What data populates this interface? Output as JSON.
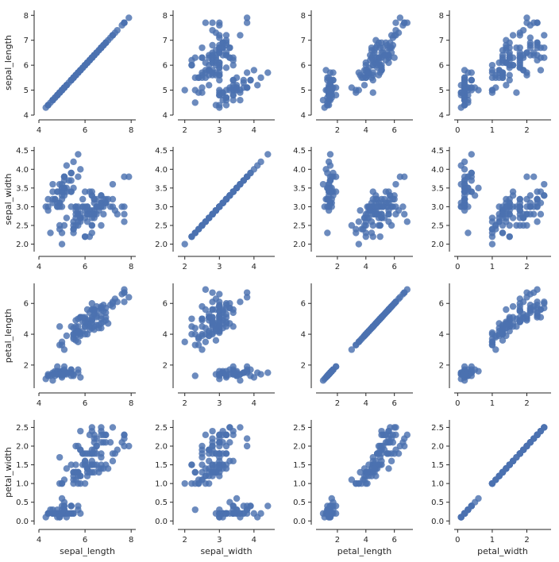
{
  "chart_data": {
    "type": "scatter",
    "title": "",
    "variables": [
      "sepal_length",
      "sepal_width",
      "petal_length",
      "petal_width"
    ],
    "point_color": "#4c72b0",
    "axis_color": "#262626",
    "axes": {
      "sepal_length": {
        "range": [
          4,
          8.2
        ],
        "ticks": [
          4,
          5,
          6,
          7,
          8
        ],
        "x_ticks": [
          4,
          6,
          8
        ]
      },
      "sepal_width": {
        "range": [
          1.8,
          4.6
        ],
        "ticks": [
          2.0,
          2.5,
          3.0,
          3.5,
          4.0,
          4.5
        ],
        "x_ticks": [
          2,
          3,
          4
        ]
      },
      "petal_length": {
        "range": [
          0.5,
          7.3
        ],
        "ticks": [
          2,
          4,
          6
        ],
        "x_ticks": [
          2,
          4,
          6
        ]
      },
      "petal_width": {
        "range": [
          -0.1,
          2.7
        ],
        "ticks": [
          0.0,
          0.5,
          1.0,
          1.5,
          2.0,
          2.5
        ],
        "x_ticks": [
          0,
          1,
          2
        ]
      }
    },
    "data": {
      "sepal_length": [
        5.1,
        4.9,
        4.7,
        4.6,
        5.0,
        5.4,
        4.6,
        5.0,
        4.4,
        4.9,
        5.4,
        4.8,
        4.8,
        4.3,
        5.8,
        5.7,
        5.4,
        5.1,
        5.7,
        5.1,
        5.4,
        5.1,
        4.6,
        5.1,
        4.8,
        5.0,
        5.0,
        5.2,
        5.2,
        4.7,
        4.8,
        5.4,
        5.2,
        5.5,
        4.9,
        5.0,
        5.5,
        4.9,
        4.4,
        5.1,
        5.0,
        4.5,
        4.4,
        5.0,
        5.1,
        4.8,
        5.1,
        4.6,
        5.3,
        5.0,
        7.0,
        6.4,
        6.9,
        5.5,
        6.5,
        5.7,
        6.3,
        4.9,
        6.6,
        5.2,
        5.0,
        5.9,
        6.0,
        6.1,
        5.6,
        6.7,
        5.6,
        5.8,
        6.2,
        5.6,
        5.9,
        6.1,
        6.3,
        6.1,
        6.4,
        6.6,
        6.8,
        6.7,
        6.0,
        5.7,
        5.5,
        5.5,
        5.8,
        6.0,
        5.4,
        6.0,
        6.7,
        6.3,
        5.6,
        5.5,
        5.5,
        6.1,
        5.8,
        5.0,
        5.6,
        5.7,
        5.7,
        6.2,
        5.1,
        5.7,
        6.3,
        5.8,
        7.1,
        6.3,
        6.5,
        7.6,
        4.9,
        7.3,
        6.7,
        7.2,
        6.5,
        6.4,
        6.8,
        5.7,
        5.8,
        6.4,
        6.5,
        7.7,
        7.7,
        6.0,
        6.9,
        5.6,
        7.7,
        6.3,
        6.7,
        7.2,
        6.2,
        6.1,
        6.4,
        7.2,
        7.4,
        7.9,
        6.4,
        6.3,
        6.1,
        7.7,
        6.3,
        6.4,
        6.0,
        6.9,
        6.7,
        6.9,
        5.8,
        6.8,
        6.7,
        6.7,
        6.3,
        6.5,
        6.2,
        5.9
      ],
      "sepal_width": [
        3.5,
        3.0,
        3.2,
        3.1,
        3.6,
        3.9,
        3.4,
        3.4,
        2.9,
        3.1,
        3.7,
        3.4,
        3.0,
        3.0,
        4.0,
        4.4,
        3.9,
        3.5,
        3.8,
        3.8,
        3.4,
        3.7,
        3.6,
        3.3,
        3.4,
        3.0,
        3.4,
        3.5,
        3.4,
        3.2,
        3.1,
        3.4,
        4.1,
        4.2,
        3.1,
        3.2,
        3.5,
        3.6,
        3.0,
        3.4,
        3.5,
        2.3,
        3.2,
        3.5,
        3.8,
        3.0,
        3.8,
        3.2,
        3.7,
        3.3,
        3.2,
        3.2,
        3.1,
        2.3,
        2.8,
        2.8,
        3.3,
        2.4,
        2.9,
        2.7,
        2.0,
        3.0,
        2.2,
        2.9,
        2.9,
        3.1,
        3.0,
        2.7,
        2.2,
        2.5,
        3.2,
        2.8,
        2.5,
        2.8,
        2.9,
        3.0,
        2.8,
        3.0,
        2.9,
        2.6,
        2.4,
        2.4,
        2.7,
        2.7,
        3.0,
        3.4,
        3.1,
        2.3,
        3.0,
        2.5,
        2.6,
        3.0,
        2.6,
        2.3,
        2.7,
        3.0,
        2.9,
        2.9,
        2.5,
        2.8,
        3.3,
        2.7,
        3.0,
        2.9,
        3.0,
        3.0,
        2.5,
        2.9,
        2.5,
        3.6,
        3.2,
        2.7,
        3.0,
        2.5,
        2.8,
        3.2,
        3.0,
        3.8,
        2.6,
        2.2,
        3.2,
        2.8,
        2.8,
        2.7,
        3.3,
        3.2,
        2.8,
        3.0,
        2.8,
        3.0,
        2.8,
        3.8,
        2.8,
        2.8,
        2.6,
        3.0,
        3.4,
        3.1,
        3.0,
        3.1,
        3.1,
        3.1,
        2.7,
        3.2,
        3.3,
        3.0,
        2.5,
        3.0,
        3.4,
        3.0
      ],
      "petal_length": [
        1.4,
        1.4,
        1.3,
        1.5,
        1.4,
        1.7,
        1.4,
        1.5,
        1.4,
        1.5,
        1.5,
        1.6,
        1.4,
        1.1,
        1.2,
        1.5,
        1.3,
        1.4,
        1.7,
        1.5,
        1.7,
        1.5,
        1.0,
        1.7,
        1.9,
        1.6,
        1.6,
        1.5,
        1.4,
        1.6,
        1.6,
        1.5,
        1.5,
        1.4,
        1.5,
        1.2,
        1.3,
        1.4,
        1.3,
        1.5,
        1.3,
        1.3,
        1.3,
        1.6,
        1.9,
        1.4,
        1.6,
        1.4,
        1.5,
        1.4,
        4.7,
        4.5,
        4.9,
        4.0,
        4.6,
        4.5,
        4.7,
        3.3,
        4.6,
        3.9,
        3.5,
        4.2,
        4.0,
        4.7,
        3.6,
        4.4,
        4.5,
        4.1,
        4.5,
        3.9,
        4.8,
        4.0,
        4.9,
        4.7,
        4.3,
        4.4,
        4.8,
        5.0,
        4.5,
        3.5,
        3.8,
        3.7,
        3.9,
        5.1,
        4.5,
        4.5,
        4.7,
        4.4,
        4.1,
        4.0,
        4.4,
        4.6,
        4.0,
        3.3,
        4.2,
        4.2,
        4.2,
        4.3,
        3.0,
        4.1,
        6.0,
        5.1,
        5.9,
        5.6,
        5.8,
        6.6,
        4.5,
        6.3,
        5.8,
        6.1,
        5.1,
        5.3,
        5.5,
        5.0,
        5.1,
        5.3,
        5.5,
        6.7,
        6.9,
        5.0,
        5.7,
        4.9,
        6.7,
        4.9,
        5.7,
        6.0,
        4.8,
        4.9,
        5.6,
        5.8,
        6.1,
        6.4,
        5.6,
        5.1,
        5.6,
        6.1,
        5.6,
        5.5,
        4.8,
        5.4,
        5.6,
        5.1,
        5.1,
        5.9,
        5.7,
        5.2,
        5.0,
        5.2,
        5.4,
        5.1
      ],
      "petal_width": [
        0.2,
        0.2,
        0.2,
        0.2,
        0.2,
        0.4,
        0.3,
        0.2,
        0.2,
        0.1,
        0.2,
        0.2,
        0.1,
        0.1,
        0.2,
        0.4,
        0.4,
        0.3,
        0.3,
        0.3,
        0.2,
        0.4,
        0.2,
        0.5,
        0.2,
        0.2,
        0.4,
        0.2,
        0.2,
        0.2,
        0.2,
        0.4,
        0.1,
        0.2,
        0.2,
        0.2,
        0.2,
        0.1,
        0.2,
        0.2,
        0.3,
        0.3,
        0.2,
        0.6,
        0.4,
        0.3,
        0.2,
        0.2,
        0.2,
        0.2,
        1.4,
        1.5,
        1.5,
        1.3,
        1.5,
        1.3,
        1.6,
        1.0,
        1.3,
        1.4,
        1.0,
        1.5,
        1.0,
        1.4,
        1.3,
        1.4,
        1.5,
        1.0,
        1.5,
        1.1,
        1.8,
        1.3,
        1.5,
        1.2,
        1.3,
        1.4,
        1.4,
        1.7,
        1.5,
        1.0,
        1.1,
        1.0,
        1.2,
        1.6,
        1.5,
        1.6,
        1.5,
        1.3,
        1.3,
        1.3,
        1.2,
        1.4,
        1.2,
        1.0,
        1.3,
        1.2,
        1.3,
        1.3,
        1.1,
        1.3,
        2.5,
        1.9,
        2.1,
        1.8,
        2.2,
        2.1,
        1.7,
        1.8,
        1.8,
        2.5,
        2.0,
        1.9,
        2.1,
        2.0,
        2.4,
        2.3,
        1.8,
        2.2,
        2.3,
        1.5,
        2.3,
        2.0,
        2.0,
        1.8,
        2.1,
        1.8,
        1.8,
        1.8,
        2.1,
        1.6,
        1.9,
        2.0,
        2.2,
        1.5,
        1.4,
        2.3,
        2.4,
        1.8,
        1.8,
        2.1,
        2.4,
        2.3,
        1.9,
        2.3,
        2.5,
        2.3,
        1.9,
        2.0,
        2.3,
        1.8
      ]
    }
  }
}
